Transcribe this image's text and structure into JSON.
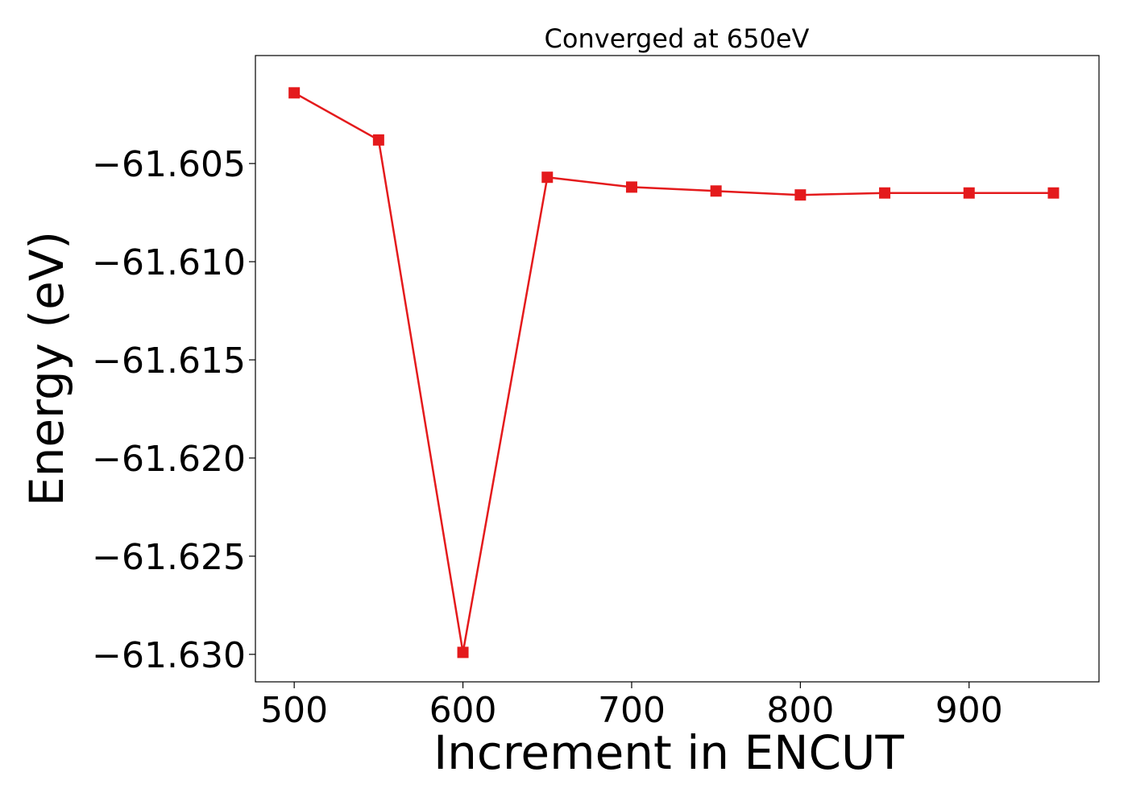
{
  "chart_data": {
    "type": "line",
    "title": "Converged at 650eV",
    "xlabel": "Increment in ENCUT",
    "ylabel": "Energy (eV)",
    "xlim": [
      477,
      977
    ],
    "ylim": [
      -61.6314,
      -61.5995
    ],
    "xticks": [
      500,
      600,
      700,
      800,
      900
    ],
    "xtick_labels": [
      "500",
      "600",
      "700",
      "800",
      "900"
    ],
    "yticks": [
      -61.605,
      -61.61,
      -61.615,
      -61.62,
      -61.625,
      -61.63
    ],
    "ytick_labels": [
      "−61.605",
      "−61.610",
      "−61.615",
      "−61.620",
      "−61.625",
      "−61.630"
    ],
    "grid": false,
    "series": [
      {
        "color": "#e41a1c",
        "marker": "square",
        "x": [
          500,
          550,
          600,
          650,
          700,
          750,
          800,
          850,
          900,
          950
        ],
        "y": [
          -61.6014,
          -61.6038,
          -61.6299,
          -61.6057,
          -61.6062,
          -61.6064,
          -61.6066,
          -61.6065,
          -61.6065,
          -61.6065
        ]
      }
    ]
  }
}
